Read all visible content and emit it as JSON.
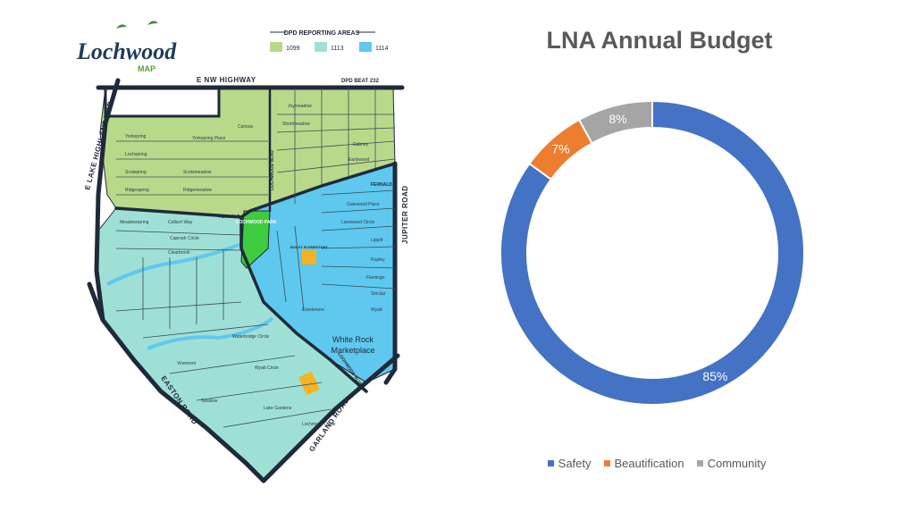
{
  "map": {
    "logo_word": "Lochwood",
    "logo_sub": "MAP",
    "legend_title": "DPD REPORTING AREAS",
    "areas": [
      {
        "code": "1099",
        "color": "#b9d98a"
      },
      {
        "code": "1113",
        "color": "#9fe0d6"
      },
      {
        "code": "1114",
        "color": "#5ec8ee"
      }
    ],
    "beat_label": "DPD BEAT 232",
    "roads": {
      "top": "E NW HIGHWAY",
      "left": "E LAKE HIGHLANDS DR",
      "right": "JUPITER ROAD",
      "bottom_left": "EASTON ROAD",
      "bottom_right": "GARLAND ROAD",
      "diagonal": "LOCHWOOD BLVD",
      "center": "LOCHWOOD BLVD"
    },
    "landmarks": {
      "park": "LOCHWOOD PARK",
      "school": "BOLSY ELEMENTARY",
      "marketplace_line1": "White Rock",
      "marketplace_line2": "Marketplace",
      "fernald_left": "FERNALD",
      "fernald_right": "FERNALD"
    },
    "streets": {
      "joymeadow": "Joymeadow",
      "carissa": "Carissa",
      "shortmeadow": "Shortmeadow",
      "yorkspring": "Yorkspring",
      "yorkspring_place": "Yorkspring Place",
      "lochspring": "Lochspring",
      "scotspring": "Scotspring",
      "ridgespring": "Ridgespring",
      "scotsmeadow": "Scotsmeadow",
      "ridgemeadow": "Ridgemeadow",
      "dabney": "Dabney",
      "earlywood": "Earlywood",
      "meadowspring": "Meadowspring",
      "colbert": "Colbert Way",
      "caprock": "Caprock Circle",
      "clearbrook": "Clearbrook",
      "gatewood": "Gatewood Place",
      "lanewood": "Lanewood Circle",
      "lippitt": "Lippitt",
      "rupley": "Rupley",
      "flamingo": "Flamingo",
      "sinclair": "Sinclair",
      "wyatt": "Wyatt",
      "creekmere": "Creekmere",
      "waterbridge": "Waterbridge Circle",
      "wyatt_circle": "Wyatt Circle",
      "lake_gardens": "Lake Gardens",
      "lochmond": "Lochmond Circle",
      "swallow": "Swallow",
      "vinemont": "Vinemont"
    }
  },
  "chart": {
    "title": "LNA Annual Budget",
    "colors": {
      "Safety": "#4472c4",
      "Beautification": "#ed7d31",
      "Community": "#a5a5a5"
    }
  },
  "chart_data": {
    "type": "pie",
    "subtype": "doughnut",
    "title": "LNA Annual Budget",
    "categories": [
      "Safety",
      "Beautification",
      "Community"
    ],
    "values": [
      85,
      7,
      8
    ],
    "labels": [
      "85%",
      "7%",
      "8%"
    ],
    "legend_position": "bottom"
  }
}
